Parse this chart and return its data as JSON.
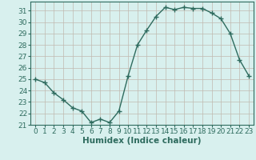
{
  "x": [
    0,
    1,
    2,
    3,
    4,
    5,
    6,
    7,
    8,
    9,
    10,
    11,
    12,
    13,
    14,
    15,
    16,
    17,
    18,
    19,
    20,
    21,
    22,
    23
  ],
  "y": [
    25.0,
    24.7,
    23.8,
    23.2,
    22.5,
    22.2,
    21.2,
    21.5,
    21.2,
    22.2,
    25.3,
    28.0,
    29.3,
    30.5,
    31.3,
    31.1,
    31.3,
    31.2,
    31.2,
    30.8,
    30.3,
    29.0,
    26.7,
    25.3
  ],
  "xlabel": "Humidex (Indice chaleur)",
  "xlim": [
    -0.5,
    23.5
  ],
  "ylim": [
    21.0,
    31.8
  ],
  "yticks": [
    21,
    22,
    23,
    24,
    25,
    26,
    27,
    28,
    29,
    30,
    31
  ],
  "xticks": [
    0,
    1,
    2,
    3,
    4,
    5,
    6,
    7,
    8,
    9,
    10,
    11,
    12,
    13,
    14,
    15,
    16,
    17,
    18,
    19,
    20,
    21,
    22,
    23
  ],
  "line_color": "#2e6b5e",
  "marker": "+",
  "marker_size": 4.0,
  "marker_lw": 1.0,
  "line_width": 1.0,
  "bg_color": "#d8f0ee",
  "grid_color": "#c0b8b0",
  "axis_bg": "#d8f0ee",
  "label_color": "#2e6b5e",
  "tick_color": "#2e6b5e",
  "xlabel_fontsize": 7.5,
  "tick_fontsize": 6.5
}
